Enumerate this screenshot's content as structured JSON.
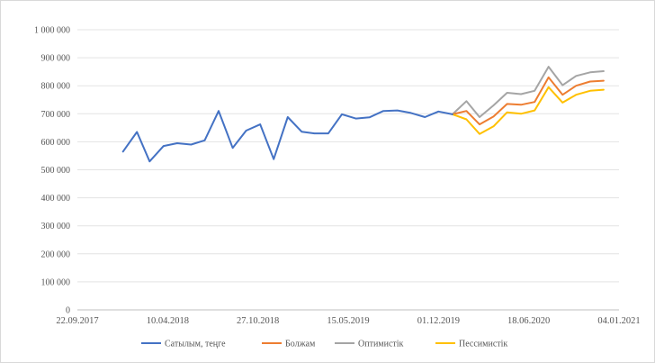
{
  "chart_data": {
    "type": "line",
    "title": "",
    "xlabel": "",
    "ylabel": "",
    "x_ticks": [
      "22.09.2017",
      "10.04.2018",
      "27.10.2018",
      "15.05.2019",
      "01.12.2019",
      "18.06.2020",
      "04.01.2021"
    ],
    "y_ticks": [
      "0",
      "100 000",
      "200 000",
      "300 000",
      "400 000",
      "500 000",
      "600 000",
      "700 000",
      "800 000",
      "900 000",
      "1 000 000"
    ],
    "ylim": [
      0,
      1000000
    ],
    "xlim": [
      "2017-09-22",
      "2021-01-04"
    ],
    "grid": true,
    "legend_position": "bottom",
    "series": [
      {
        "name": "Сатылым, теңге",
        "color": "#4472c4",
        "points": [
          [
            "2018-01-01",
            565000
          ],
          [
            "2018-02-01",
            635000
          ],
          [
            "2018-03-01",
            530000
          ],
          [
            "2018-04-01",
            585000
          ],
          [
            "2018-05-01",
            595000
          ],
          [
            "2018-06-01",
            590000
          ],
          [
            "2018-07-01",
            605000
          ],
          [
            "2018-08-01",
            710000
          ],
          [
            "2018-09-01",
            578000
          ],
          [
            "2018-10-01",
            640000
          ],
          [
            "2018-11-01",
            662000
          ],
          [
            "2018-12-01",
            538000
          ],
          [
            "2019-01-01",
            688000
          ],
          [
            "2019-02-01",
            636000
          ],
          [
            "2019-03-01",
            630000
          ],
          [
            "2019-04-01",
            630000
          ],
          [
            "2019-05-01",
            698000
          ],
          [
            "2019-06-01",
            683000
          ],
          [
            "2019-07-01",
            687000
          ],
          [
            "2019-08-01",
            710000
          ],
          [
            "2019-09-01",
            712000
          ],
          [
            "2019-10-01",
            703000
          ],
          [
            "2019-11-01",
            688000
          ],
          [
            "2019-12-01",
            708000
          ],
          [
            "2020-01-01",
            698000
          ]
        ]
      },
      {
        "name": "Болжам",
        "color": "#ed7d31",
        "points": [
          [
            "2020-01-01",
            698000
          ],
          [
            "2020-02-01",
            710000
          ],
          [
            "2020-03-01",
            662000
          ],
          [
            "2020-04-01",
            690000
          ],
          [
            "2020-05-01",
            735000
          ],
          [
            "2020-06-01",
            732000
          ],
          [
            "2020-07-01",
            742000
          ],
          [
            "2020-08-01",
            830000
          ],
          [
            "2020-09-01",
            768000
          ],
          [
            "2020-10-01",
            800000
          ],
          [
            "2020-11-01",
            815000
          ],
          [
            "2020-12-01",
            818000
          ]
        ]
      },
      {
        "name": "Оптимистік",
        "color": "#a5a5a5",
        "points": [
          [
            "2020-01-01",
            698000
          ],
          [
            "2020-02-01",
            745000
          ],
          [
            "2020-03-01",
            688000
          ],
          [
            "2020-04-01",
            730000
          ],
          [
            "2020-05-01",
            775000
          ],
          [
            "2020-06-01",
            770000
          ],
          [
            "2020-07-01",
            782000
          ],
          [
            "2020-08-01",
            868000
          ],
          [
            "2020-09-01",
            802000
          ],
          [
            "2020-10-01",
            835000
          ],
          [
            "2020-11-01",
            848000
          ],
          [
            "2020-12-01",
            852000
          ]
        ]
      },
      {
        "name": "Пессимистік",
        "color": "#ffc000",
        "points": [
          [
            "2020-01-01",
            698000
          ],
          [
            "2020-02-01",
            680000
          ],
          [
            "2020-03-01",
            628000
          ],
          [
            "2020-04-01",
            655000
          ],
          [
            "2020-05-01",
            705000
          ],
          [
            "2020-06-01",
            700000
          ],
          [
            "2020-07-01",
            712000
          ],
          [
            "2020-08-01",
            795000
          ],
          [
            "2020-09-01",
            740000
          ],
          [
            "2020-10-01",
            768000
          ],
          [
            "2020-11-01",
            782000
          ],
          [
            "2020-12-01",
            786000
          ]
        ]
      }
    ]
  }
}
